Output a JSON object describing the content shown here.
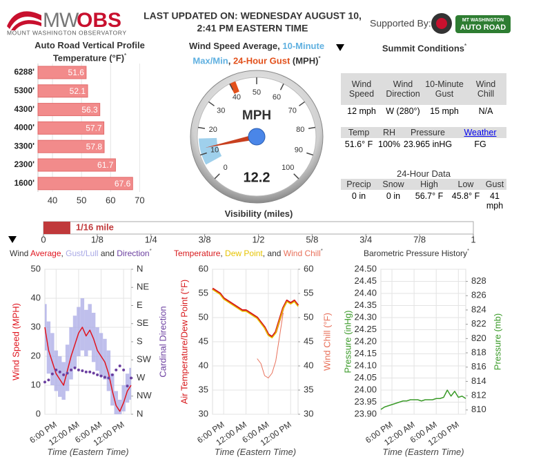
{
  "header": {
    "logo_mw": "MW",
    "logo_obs": "OBS",
    "logo_sub": "MOUNT WASHINGTON OBSERVATORY",
    "updated_line1": "LAST UPDATED ON: WEDNESDAY AUGUST 10,",
    "updated_line2": "2:41 PM EASTERN TIME",
    "supported_by": "Supported By:",
    "sponsor_line1": "MT WASHINGTON",
    "sponsor_line2": "AUTO ROAD"
  },
  "summit": {
    "title": "Summit Conditions",
    "note": "*",
    "wind": {
      "headers": [
        "Wind Speed",
        "Wind Direction",
        "10-Minute Gust",
        "Wind Chill"
      ],
      "values": [
        "12 mph",
        "W (280°)",
        "15 mph",
        "N/A"
      ]
    },
    "weather": {
      "headers": [
        "Temp",
        "RH",
        "Pressure",
        "Weather"
      ],
      "values": [
        "51.6° F",
        "100%",
        "23.965 inHG",
        "FG"
      ]
    },
    "day_title": "24-Hour Data",
    "day": {
      "headers": [
        "Precip",
        "Snow",
        "High",
        "Low",
        "Gust"
      ],
      "values": [
        "0 in",
        "0 in",
        "56.7° F",
        "45.8° F",
        "41 mph"
      ]
    }
  },
  "chart_data": [
    {
      "type": "bar",
      "orientation": "horizontal",
      "title": "Auto Road Vertical Profile",
      "subtitle": "Temperature (°F)",
      "note": "*",
      "categories": [
        "6288'",
        "5300'",
        "4300'",
        "4000'",
        "3300'",
        "2300'",
        "1600'"
      ],
      "values": [
        51.6,
        52.1,
        56.3,
        57.7,
        57.8,
        61.7,
        67.6
      ],
      "color": "#f28b8b",
      "xlim": [
        35,
        73
      ],
      "xticks": [
        40,
        50,
        60,
        70
      ]
    },
    {
      "type": "gauge",
      "title_parts": [
        "Wind Speed Average, ",
        ", ",
        " (MPH)"
      ],
      "minmax_label": "10-Minute Max/Min",
      "gust_label": "24-Hour Gust",
      "note": "*",
      "minmax_color": "#5fb0e0",
      "gust_color": "#e2501b",
      "unit": "MPH",
      "value": 12.2,
      "min": 6,
      "max": 16,
      "gust": 41,
      "range": [
        0,
        100
      ],
      "ticks": [
        0,
        10,
        20,
        30,
        40,
        50,
        60,
        70,
        80,
        90,
        100
      ]
    },
    {
      "type": "bar",
      "orientation": "horizontal",
      "title": "Visibility (miles)",
      "values": [
        0.0625
      ],
      "value_labels": [
        "1/16 mile"
      ],
      "color": "#c0393b",
      "xlim": [
        0,
        1
      ],
      "xticks": [
        0,
        {
          "value": 0.125,
          "label": "1/8"
        },
        {
          "value": 0.25,
          "label": "1/4"
        },
        {
          "value": 0.375,
          "label": "3/8"
        },
        {
          "value": 0.5,
          "label": "1/2"
        },
        {
          "value": 0.625,
          "label": "5/8"
        },
        {
          "value": 0.75,
          "label": "3/4"
        },
        {
          "value": 0.875,
          "label": "7/8"
        },
        1
      ]
    },
    {
      "type": "line",
      "title_parts": [
        "Wind ",
        ", ",
        " and "
      ],
      "note": "*",
      "x": [
        null,
        null,
        null,
        "6:00 PM",
        null,
        null,
        null,
        null,
        null,
        "12:00 AM",
        null,
        null,
        null,
        null,
        null,
        "6:00 AM",
        null,
        null,
        null,
        null,
        null,
        "12:00 PM",
        null,
        null
      ],
      "x_title": "Time (Eastern Time)",
      "y_title": "Wind Speed (MPH)",
      "y2_title": "Cardinal Direction",
      "ylim": [
        0,
        50
      ],
      "yticks": [
        0,
        10,
        20,
        30,
        40,
        50
      ],
      "y2lim": [
        360,
        0
      ],
      "y2ticks": [
        {
          "value": 0,
          "label": "N"
        },
        {
          "value": 45,
          "label": "NE"
        },
        {
          "value": 90,
          "label": "E"
        },
        {
          "value": 135,
          "label": "SE"
        },
        {
          "value": 180,
          "label": "S"
        },
        {
          "value": 225,
          "label": "SW"
        },
        {
          "value": 270,
          "label": "W"
        },
        {
          "value": 315,
          "label": "NW"
        },
        {
          "value": 360,
          "label": "N"
        }
      ],
      "series": [
        {
          "name": "Average",
          "color": "#e0141e",
          "values": [
            30,
            22,
            18,
            14,
            12,
            10,
            15,
            20,
            24,
            28,
            30,
            27,
            29,
            26,
            22,
            20,
            18,
            14,
            8,
            3,
            1,
            4,
            8,
            10
          ]
        },
        {
          "name": "Gust/Lull",
          "color": "#a9a9e6",
          "values": [
            38,
            32,
            28,
            22,
            20,
            18,
            24,
            30,
            34,
            37,
            40,
            36,
            38,
            35,
            30,
            28,
            26,
            22,
            14,
            8,
            5,
            10,
            14,
            16
          ],
          "lows": [
            22,
            14,
            10,
            8,
            6,
            5,
            8,
            12,
            16,
            20,
            22,
            20,
            22,
            18,
            15,
            13,
            12,
            8,
            3,
            0,
            0,
            1,
            4,
            5
          ]
        },
        {
          "name": "Direction",
          "color": "#6b3fa0",
          "axis": "y2",
          "style": "dots",
          "values": [
            280,
            275,
            260,
            250,
            255,
            262,
            258,
            250,
            245,
            250,
            252,
            255,
            255,
            258,
            262,
            265,
            268,
            270,
            262,
            250,
            240,
            250,
            290,
            270
          ]
        }
      ]
    },
    {
      "type": "line",
      "title_parts": [
        ", ",
        ", and "
      ],
      "note": "*",
      "x": [
        null,
        null,
        null,
        "6:00 PM",
        null,
        null,
        null,
        null,
        null,
        "12:00 AM",
        null,
        null,
        null,
        null,
        null,
        "6:00 AM",
        null,
        null,
        null,
        null,
        null,
        "12:00 PM",
        null,
        null
      ],
      "x_title": "Time (Eastern Time)",
      "y_title": "Air Temperature/Dew Point (°F)",
      "y2_title": "Wind Chill (°F)",
      "ylim": [
        30,
        60
      ],
      "yticks": [
        30,
        35,
        40,
        45,
        50,
        55,
        60
      ],
      "y2lim": [
        30,
        60
      ],
      "y2ticks": [
        30,
        35,
        40,
        45,
        50,
        55,
        60
      ],
      "series": [
        {
          "name": "Temperature",
          "color": "#d7191c",
          "width": 3,
          "values": [
            56,
            55.5,
            55,
            54,
            53.5,
            53,
            52.5,
            52,
            51.5,
            51.5,
            51,
            50.5,
            50,
            49,
            48,
            46.5,
            46,
            47,
            49.5,
            52,
            53.5,
            53,
            53.5,
            52.5
          ]
        },
        {
          "name": "Dew Point",
          "color": "#e6c300",
          "width": 1.5,
          "values": [
            55.8,
            55.3,
            54.8,
            53.8,
            53.3,
            52.8,
            52.3,
            51.8,
            51.3,
            51.3,
            50.8,
            50.3,
            49.8,
            48.8,
            47.8,
            46.3,
            45.8,
            46.8,
            49.3,
            51.8,
            53.3,
            52.8,
            53.3,
            52.3
          ]
        },
        {
          "name": "Wind Chill",
          "color": "#e8705a",
          "axis": "y2",
          "width": 1,
          "values": [
            null,
            null,
            null,
            null,
            null,
            null,
            null,
            null,
            null,
            null,
            null,
            null,
            41.5,
            40.5,
            38,
            37.5,
            38.5,
            41,
            46,
            51,
            null,
            null,
            null,
            null
          ]
        }
      ]
    },
    {
      "type": "line",
      "title": "Barometric Pressure History",
      "note": "*",
      "x": [
        null,
        null,
        null,
        "6:00 PM",
        null,
        null,
        null,
        null,
        null,
        "12:00 AM",
        null,
        null,
        null,
        null,
        null,
        "6:00 AM",
        null,
        null,
        null,
        null,
        null,
        "12:00 PM",
        null,
        null
      ],
      "x_title": "Time (Eastern Time)",
      "y_title": "Pressure (inHg)",
      "y2_title": "Pressure (mb)",
      "ylim": [
        23.9,
        24.5
      ],
      "yticks": [
        {
          "value": 23.9,
          "label": "23.90"
        },
        23.95,
        {
          "value": 24,
          "label": "24.00"
        },
        24.05,
        {
          "value": 24.1,
          "label": "24.10"
        },
        24.15,
        {
          "value": 24.2,
          "label": "24.20"
        },
        24.25,
        {
          "value": 24.3,
          "label": "24.30"
        },
        24.35,
        {
          "value": 24.4,
          "label": "24.40"
        },
        24.45,
        {
          "value": 24.5,
          "label": "24.50"
        }
      ],
      "y2lim": [
        809.4,
        829.7
      ],
      "y2ticks": [
        810,
        812,
        814,
        816,
        818,
        820,
        822,
        824,
        826,
        828
      ],
      "series": [
        {
          "color": "#3a9a28",
          "width": 1.5,
          "values": [
            23.92,
            23.93,
            23.935,
            23.94,
            23.945,
            23.95,
            23.955,
            23.955,
            23.96,
            23.96,
            23.96,
            23.955,
            23.96,
            23.96,
            23.96,
            23.965,
            23.965,
            23.97,
            24.0,
            23.975,
            23.995,
            23.97,
            23.975,
            23.965
          ]
        }
      ]
    }
  ]
}
